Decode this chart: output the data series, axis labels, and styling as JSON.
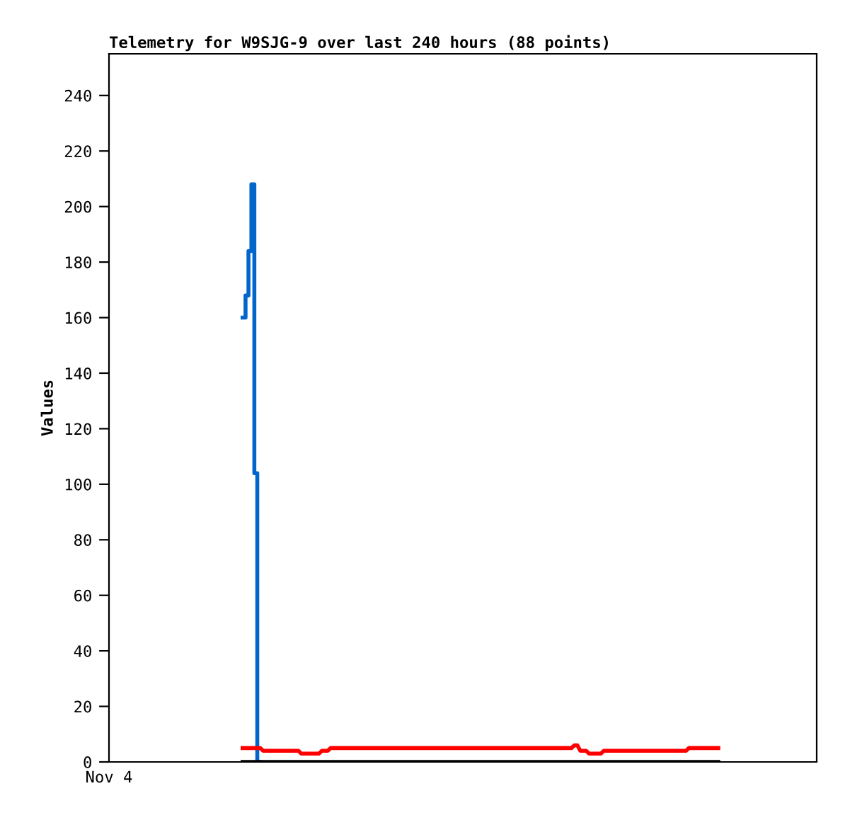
{
  "chart_data": {
    "type": "line",
    "title": "Telemetry for W9SJG-9 over last 240 hours (88 points)",
    "ylabel": "Values",
    "annotations": [
      "Nov 4"
    ],
    "tick_labels": "y",
    "categories": [
      null,
      null,
      null,
      null,
      null,
      null,
      null,
      null,
      null,
      null,
      null,
      null,
      null,
      null,
      null,
      null,
      null,
      null,
      null,
      null,
      null,
      null,
      null,
      null,
      null,
      null,
      null,
      null,
      null,
      null,
      null,
      null,
      null,
      null,
      null,
      null,
      null,
      null,
      null,
      null,
      null,
      null,
      null,
      null,
      null,
      null,
      null,
      null,
      null,
      null,
      null,
      null,
      null,
      null,
      null,
      null,
      null,
      null,
      null,
      null,
      null,
      null,
      null,
      null,
      null,
      null,
      null,
      null,
      null,
      null,
      null,
      null,
      null,
      null,
      null,
      null,
      null,
      null,
      null,
      null,
      null,
      null,
      null,
      null,
      null,
      null,
      null,
      null,
      null,
      null,
      null,
      null,
      null,
      null,
      null,
      null,
      null,
      null,
      null,
      null,
      null,
      null,
      null,
      null,
      null,
      null,
      null,
      null,
      null,
      null,
      null,
      null,
      null,
      null,
      null,
      null,
      null,
      null,
      null,
      null,
      null,
      null,
      null,
      null,
      null,
      null,
      null,
      null,
      null,
      null,
      null,
      null,
      null,
      null,
      null,
      null,
      null,
      null,
      null,
      null,
      null,
      null,
      null,
      null,
      null,
      null,
      null,
      null,
      null,
      null,
      null,
      null,
      null,
      null,
      null,
      null,
      null,
      null,
      null,
      null,
      null,
      null,
      null,
      null,
      null,
      null,
      null,
      null,
      null,
      null,
      null,
      null,
      null,
      null,
      null,
      null,
      null,
      null,
      null,
      null,
      null,
      null,
      null,
      null,
      null,
      null,
      null,
      null,
      null,
      null,
      null,
      null,
      null,
      null,
      null,
      null,
      null,
      null,
      null,
      null,
      null,
      null,
      null,
      null,
      null,
      null,
      null,
      null,
      null,
      null,
      null,
      null,
      null,
      null,
      null,
      null,
      null,
      null,
      null,
      null,
      null,
      null,
      null,
      null,
      null,
      null,
      null,
      null,
      null,
      null,
      null,
      null,
      null,
      null,
      null,
      null,
      null,
      null,
      null,
      null,
      null
    ],
    "ylim": [
      0,
      255
    ],
    "yticks": [
      0,
      20,
      40,
      60,
      80,
      100,
      120,
      140,
      160,
      180,
      200,
      220,
      240
    ],
    "grid": false,
    "line_style": "solid",
    "marker": "none",
    "series": [
      {
        "type": "step",
        "color": "#0066cc",
        "values": [
          null,
          null,
          null,
          null,
          null,
          null,
          null,
          null,
          null,
          null,
          null,
          null,
          null,
          null,
          null,
          null,
          null,
          null,
          null,
          null,
          null,
          null,
          null,
          null,
          null,
          null,
          null,
          null,
          null,
          null,
          null,
          null,
          null,
          null,
          null,
          null,
          null,
          null,
          null,
          null,
          null,
          null,
          null,
          null,
          null,
          160,
          168,
          184,
          208,
          104,
          0,
          null,
          null,
          null,
          null,
          null,
          null,
          null,
          null,
          null,
          null,
          null,
          null,
          null,
          null,
          null,
          null,
          null,
          null,
          null,
          null,
          null,
          null,
          null,
          null,
          null,
          null,
          null,
          null,
          null,
          null,
          null,
          null,
          null,
          null,
          null,
          null,
          null,
          null,
          null,
          null,
          null,
          null,
          null,
          null,
          null,
          null,
          null,
          null,
          null,
          null,
          null,
          null,
          null,
          null,
          null,
          null,
          null,
          null,
          null,
          null,
          null,
          null,
          null,
          null,
          null,
          null,
          null,
          null,
          null,
          null,
          null,
          null,
          null,
          null,
          null,
          null,
          null,
          null,
          null,
          null,
          null,
          null,
          null,
          null,
          null,
          null,
          null,
          null,
          null,
          null,
          null,
          null,
          null,
          null,
          null,
          null,
          null,
          null,
          null,
          null,
          null,
          null,
          null,
          null,
          null,
          null,
          null,
          null,
          null,
          null,
          null,
          null,
          null,
          null,
          null,
          null,
          null,
          null,
          null,
          null,
          null,
          null,
          null,
          null,
          null,
          null,
          null,
          null,
          null,
          null,
          null,
          null,
          null,
          null,
          null,
          null,
          null,
          null,
          null,
          null,
          null,
          null,
          null,
          null,
          null,
          null,
          null,
          null,
          null,
          null,
          null,
          null,
          null,
          null,
          null,
          null,
          null,
          null,
          null,
          null,
          null,
          null,
          null,
          null,
          null,
          null,
          null,
          null,
          null,
          null,
          null,
          null,
          null,
          null,
          null,
          null,
          null,
          null,
          null,
          null,
          null,
          null,
          null,
          null,
          null,
          null,
          null,
          null,
          null,
          null
        ]
      },
      {
        "color": "#ff0000",
        "values": [
          null,
          null,
          null,
          null,
          null,
          null,
          null,
          null,
          null,
          null,
          null,
          null,
          null,
          null,
          null,
          null,
          null,
          null,
          null,
          null,
          null,
          null,
          null,
          null,
          null,
          null,
          null,
          null,
          null,
          null,
          null,
          null,
          null,
          null,
          null,
          null,
          null,
          null,
          null,
          null,
          null,
          null,
          null,
          null,
          null,
          5,
          5,
          5,
          5,
          5,
          5,
          5,
          4,
          4,
          4,
          4,
          4,
          4,
          4,
          4,
          4,
          4,
          4,
          4,
          4,
          3,
          3,
          3,
          3,
          3,
          3,
          3,
          4,
          4,
          4,
          5,
          5,
          5,
          5,
          5,
          5,
          5,
          5,
          5,
          5,
          5,
          5,
          5,
          5,
          5,
          5,
          5,
          5,
          5,
          5,
          5,
          5,
          5,
          5,
          5,
          5,
          5,
          5,
          5,
          5,
          5,
          5,
          5,
          5,
          5,
          5,
          5,
          5,
          5,
          5,
          5,
          5,
          5,
          5,
          5,
          5,
          5,
          5,
          5,
          5,
          5,
          5,
          5,
          5,
          5,
          5,
          5,
          5,
          5,
          5,
          5,
          5,
          5,
          5,
          5,
          5,
          5,
          5,
          5,
          5,
          5,
          5,
          5,
          5,
          5,
          5,
          5,
          5,
          5,
          5,
          5,
          5,
          5,
          6,
          6,
          4,
          4,
          4,
          3,
          3,
          3,
          3,
          3,
          4,
          4,
          4,
          4,
          4,
          4,
          4,
          4,
          4,
          4,
          4,
          4,
          4,
          4,
          4,
          4,
          4,
          4,
          4,
          4,
          4,
          4,
          4,
          4,
          4,
          4,
          4,
          4,
          4,
          5,
          5,
          5,
          5,
          5,
          5,
          5,
          5,
          5,
          5,
          5,
          null,
          null,
          null,
          null,
          null,
          null,
          null,
          null,
          null,
          null,
          null,
          null,
          null,
          null,
          null,
          null,
          null,
          null,
          null,
          null,
          null,
          null,
          null,
          null,
          null,
          null,
          null,
          null,
          null,
          null,
          null,
          null,
          null
        ]
      },
      {
        "color": "#000000",
        "values": [
          null,
          null,
          null,
          null,
          null,
          null,
          null,
          null,
          null,
          null,
          null,
          null,
          null,
          null,
          null,
          null,
          null,
          null,
          null,
          null,
          null,
          null,
          null,
          null,
          null,
          null,
          null,
          null,
          null,
          null,
          null,
          null,
          null,
          null,
          null,
          null,
          null,
          null,
          null,
          null,
          null,
          null,
          null,
          null,
          null,
          0,
          0,
          0,
          0,
          0,
          0,
          0,
          0,
          0,
          0,
          0,
          0,
          0,
          0,
          0,
          0,
          0,
          0,
          0,
          0,
          0,
          0,
          0,
          0,
          0,
          0,
          0,
          0,
          0,
          0,
          0,
          0,
          0,
          0,
          0,
          0,
          0,
          0,
          0,
          0,
          0,
          0,
          0,
          0,
          0,
          0,
          0,
          0,
          0,
          0,
          0,
          0,
          0,
          0,
          0,
          0,
          0,
          0,
          0,
          0,
          0,
          0,
          0,
          0,
          0,
          0,
          0,
          0,
          0,
          0,
          0,
          0,
          0,
          0,
          0,
          0,
          0,
          0,
          0,
          0,
          0,
          0,
          0,
          0,
          0,
          0,
          0,
          0,
          0,
          0,
          0,
          0,
          0,
          0,
          0,
          0,
          0,
          0,
          0,
          0,
          0,
          0,
          0,
          0,
          0,
          0,
          0,
          0,
          0,
          0,
          0,
          0,
          0,
          0,
          0,
          0,
          0,
          0,
          0,
          0,
          0,
          0,
          0,
          0,
          0,
          0,
          0,
          0,
          0,
          0,
          0,
          0,
          0,
          0,
          0,
          0,
          0,
          0,
          0,
          0,
          0,
          0,
          0,
          0,
          0,
          0,
          0,
          0,
          0,
          0,
          0,
          0,
          0,
          0,
          0,
          0,
          0,
          0,
          0,
          0,
          0,
          0,
          0,
          null,
          null,
          null,
          null,
          null,
          null,
          null,
          null,
          null,
          null,
          null,
          null,
          null,
          null,
          null,
          null,
          null,
          null,
          null,
          null,
          null,
          null,
          null,
          null,
          null,
          null,
          null,
          null,
          null,
          null,
          null,
          null,
          null
        ]
      }
    ]
  }
}
